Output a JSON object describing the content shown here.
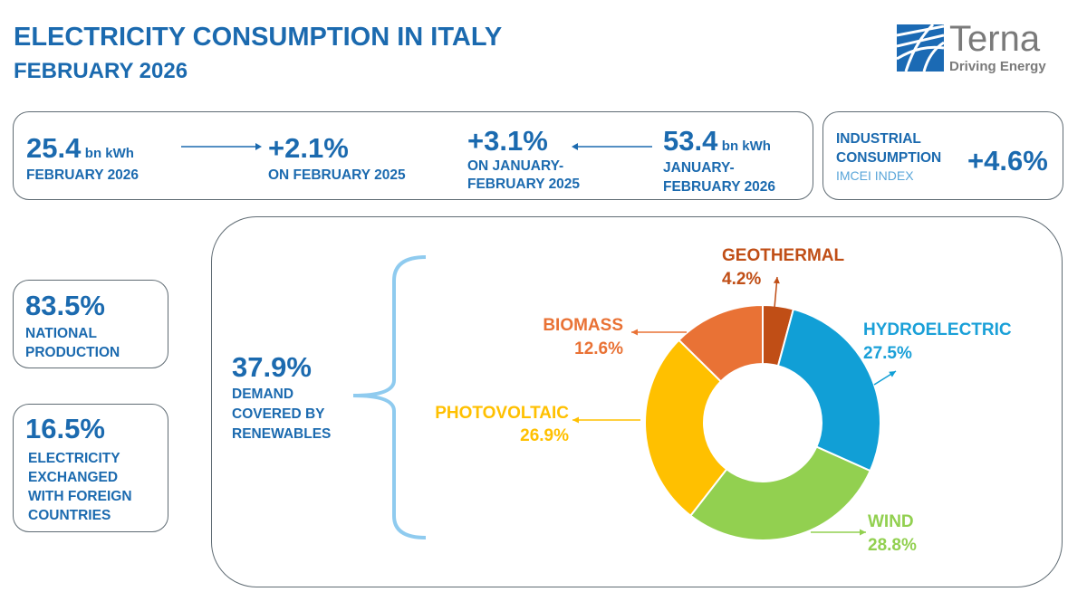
{
  "header": {
    "title": "ELECTRICITY CONSUMPTION IN ITALY",
    "subtitle": "FEBRUARY 2026"
  },
  "logo": {
    "name": "Terna",
    "tagline": "Driving Energy",
    "colors": {
      "blue": "#1b6ab4",
      "gray": "#7a7a7a"
    }
  },
  "top_stats": {
    "month_value": "25.4",
    "month_unit": "bn kWh",
    "month_label": "FEBRUARY 2026",
    "month_change": "+2.1%",
    "month_change_label": "ON FEBRUARY 2025",
    "ytd_change": "+3.1%",
    "ytd_change_label_1": "ON JANUARY-",
    "ytd_change_label_2": "FEBRUARY 2025",
    "ytd_value": "53.4",
    "ytd_unit": "bn kWh",
    "ytd_label_1": "JANUARY-",
    "ytd_label_2": "FEBRUARY 2026"
  },
  "industrial": {
    "label_1": "INDUSTRIAL",
    "label_2": "CONSUMPTION",
    "index": "IMCEI INDEX",
    "value": "+4.6%"
  },
  "side_stats": [
    {
      "value": "83.5%",
      "lines": [
        "NATIONAL",
        "PRODUCTION"
      ]
    },
    {
      "value": "16.5%",
      "lines": [
        "ELECTRICITY",
        "EXCHANGED",
        "WITH FOREIGN",
        "COUNTRIES"
      ]
    }
  ],
  "renewables": {
    "value": "37.9%",
    "lines": [
      "DEMAND",
      "COVERED BY",
      "RENEWABLES"
    ]
  },
  "colors": {
    "primary": "#1b6aaf",
    "secondary": "#5aa6d9",
    "bracket": "#8fcbef"
  },
  "chart_data": {
    "type": "pie",
    "donut": true,
    "direction": "clockwise from top",
    "slices": [
      {
        "name": "GEOTHERMAL",
        "value": 4.2,
        "label": "4.2%",
        "color": "#c04e16"
      },
      {
        "name": "HYDROELECTRIC",
        "value": 27.5,
        "label": "27.5%",
        "color": "#119fd6"
      },
      {
        "name": "WIND",
        "value": 28.8,
        "label": "28.8%",
        "color": "#92d050"
      },
      {
        "name": "PHOTOVOLTAIC",
        "value": 26.9,
        "label": "26.9%",
        "color": "#ffc000"
      },
      {
        "name": "BIOMASS",
        "value": 12.6,
        "label": "12.6%",
        "color": "#e97235"
      }
    ]
  }
}
